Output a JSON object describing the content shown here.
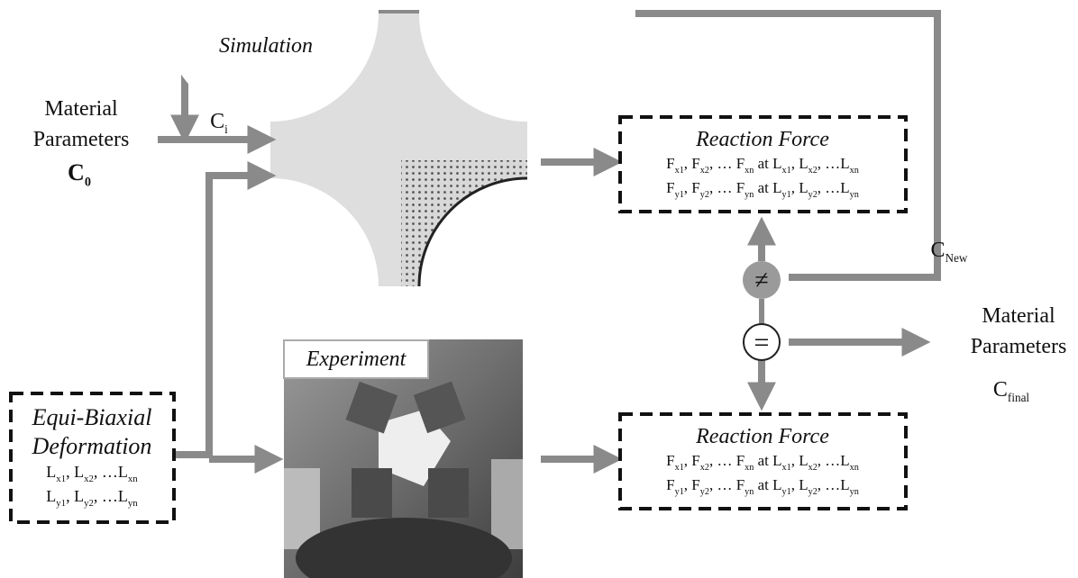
{
  "simulation": {
    "label": "Simulation"
  },
  "inputs": {
    "label_lines": [
      "Material",
      "Parameters"
    ],
    "symbol": [
      "C",
      "0"
    ]
  },
  "iteration": {
    "symbol": [
      "C",
      "i"
    ]
  },
  "update": {
    "symbol": [
      "C",
      "New"
    ]
  },
  "reaction_force_simulation": {
    "title": "Reaction Force",
    "lines": [
      [
        [
          "F",
          "x1"
        ],
        [
          ", F",
          "x2"
        ],
        [
          ", … F",
          "xn"
        ],
        [
          " at L",
          "x1"
        ],
        [
          ", L",
          "x2"
        ],
        [
          ", …L",
          "xn"
        ]
      ],
      [
        [
          "F",
          "y1"
        ],
        [
          ", F",
          "y2"
        ],
        [
          ", … F",
          "yn"
        ],
        [
          " at L",
          "y1"
        ],
        [
          ", L",
          "y2"
        ],
        [
          ", …L",
          "yn"
        ]
      ]
    ]
  },
  "comparison": {
    "not_equal": "≠",
    "equal": "="
  },
  "output": {
    "label_lines": [
      "Material",
      "Parameters"
    ],
    "symbol": [
      "C",
      "final"
    ]
  },
  "experiment": {
    "label": "Experiment"
  },
  "deformation": {
    "title_lines": [
      "Equi-Biaxial",
      "Deformation"
    ],
    "lines": [
      [
        [
          "L",
          "x1"
        ],
        [
          ", L",
          "x2"
        ],
        [
          ", …L",
          "xn"
        ]
      ],
      [
        [
          "L",
          "y1"
        ],
        [
          ", L",
          "y2"
        ],
        [
          ", …L",
          "yn"
        ]
      ]
    ]
  },
  "reaction_force_experiment": {
    "title": "Reaction Force",
    "lines": [
      [
        [
          "F",
          "x1"
        ],
        [
          ", F",
          "x2"
        ],
        [
          ", … F",
          "xn"
        ],
        [
          " at L",
          "x1"
        ],
        [
          ", L",
          "x2"
        ],
        [
          ", …L",
          "xn"
        ]
      ],
      [
        [
          "F",
          "y1"
        ],
        [
          ", F",
          "y2"
        ],
        [
          ", … F",
          "yn"
        ],
        [
          " at L",
          "y1"
        ],
        [
          ", L",
          "y2"
        ],
        [
          ", …L",
          "yn"
        ]
      ]
    ]
  }
}
